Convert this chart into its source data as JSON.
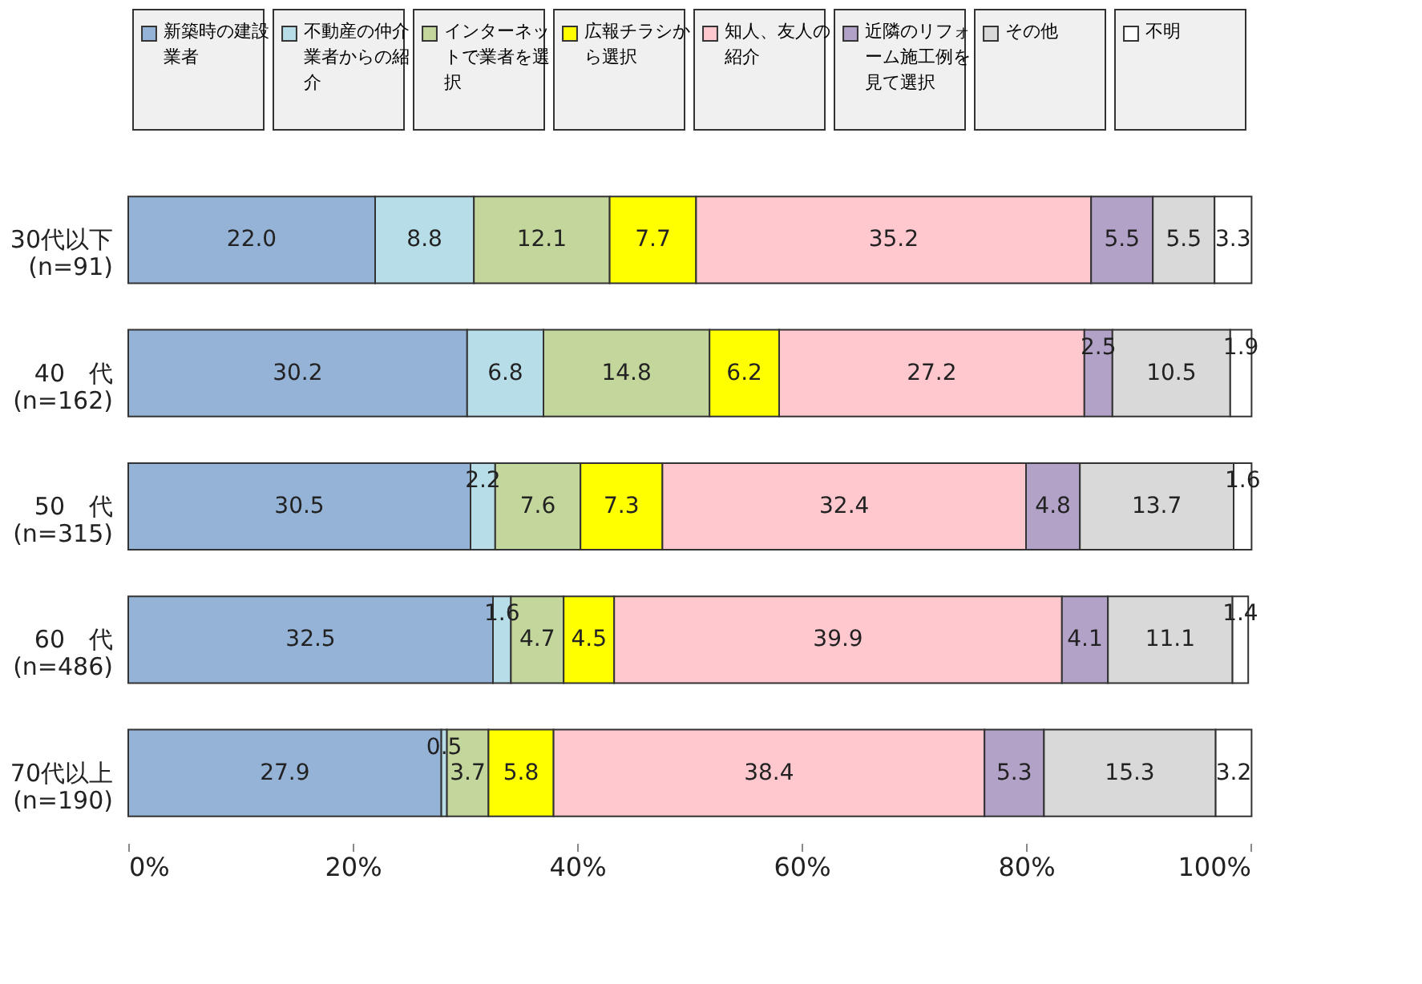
{
  "chart_data": {
    "type": "bar",
    "orientation": "horizontal",
    "stacked": true,
    "categories": [
      "30代以下\n(n=91)",
      "40　代\n(n=162)",
      "50　代\n(n=315)",
      "60　代\n(n=486)",
      "70代以上\n(n=190)"
    ],
    "xlim": [
      0,
      100
    ],
    "xticks": [
      {
        "value": 0,
        "label": "0%"
      },
      {
        "value": 20,
        "label": "20%"
      },
      {
        "value": 40,
        "label": "40%"
      },
      {
        "value": 60,
        "label": "60%"
      },
      {
        "value": 80,
        "label": "80%"
      },
      {
        "value": 100,
        "label": "100%"
      }
    ],
    "grid": false,
    "legend": "top",
    "series": [
      {
        "name": "新築時の建設業者",
        "color": "#95b3d7",
        "values": [
          22.0,
          30.2,
          30.5,
          32.5,
          27.9
        ],
        "value_labels": [
          "22.0",
          "30.2",
          "30.5",
          "32.5",
          "27.9"
        ]
      },
      {
        "name": "不動産の仲介業者からの紹介",
        "color": "#b7dee8",
        "values": [
          8.8,
          6.8,
          2.2,
          1.6,
          0.5
        ],
        "value_labels": [
          "8.8",
          "6.8",
          "2.2",
          "1.6",
          "0.5"
        ]
      },
      {
        "name": "インターネットで業者を選択",
        "color": "#c3d69b",
        "values": [
          12.1,
          14.8,
          7.6,
          4.7,
          3.7
        ],
        "value_labels": [
          "12.1",
          "14.8",
          "7.6",
          "4.7",
          "3.7"
        ]
      },
      {
        "name": "広報チラシから選択",
        "color": "#ffff00",
        "values": [
          7.7,
          6.2,
          7.3,
          4.5,
          5.8
        ],
        "value_labels": [
          "7.7",
          "6.2",
          "7.3",
          "4.5",
          "5.8"
        ]
      },
      {
        "name": "知人、友人の紹介",
        "color": "#ffc7ce",
        "values": [
          35.2,
          27.2,
          32.4,
          39.9,
          38.4
        ],
        "value_labels": [
          "35.2",
          "27.2",
          "32.4",
          "39.9",
          "38.4"
        ]
      },
      {
        "name": "近隣のリフォーム施工例を見て選択",
        "color": "#b3a2c7",
        "values": [
          5.5,
          2.5,
          4.8,
          4.1,
          5.3
        ],
        "value_labels": [
          "5.5",
          "2.5",
          "4.8",
          "4.1",
          "5.3"
        ]
      },
      {
        "name": "その他",
        "color": "#d9d9d9",
        "values": [
          5.5,
          10.5,
          13.7,
          11.1,
          15.3
        ],
        "value_labels": [
          "5.5",
          "10.5",
          "13.7",
          "11.1",
          "15.3"
        ]
      },
      {
        "name": "不明",
        "color": "#ffffff",
        "values": [
          3.3,
          1.9,
          1.6,
          1.4,
          3.2
        ],
        "value_labels": [
          "3.3",
          "1.9",
          "1.6",
          "1.4",
          "3.2"
        ]
      }
    ]
  }
}
